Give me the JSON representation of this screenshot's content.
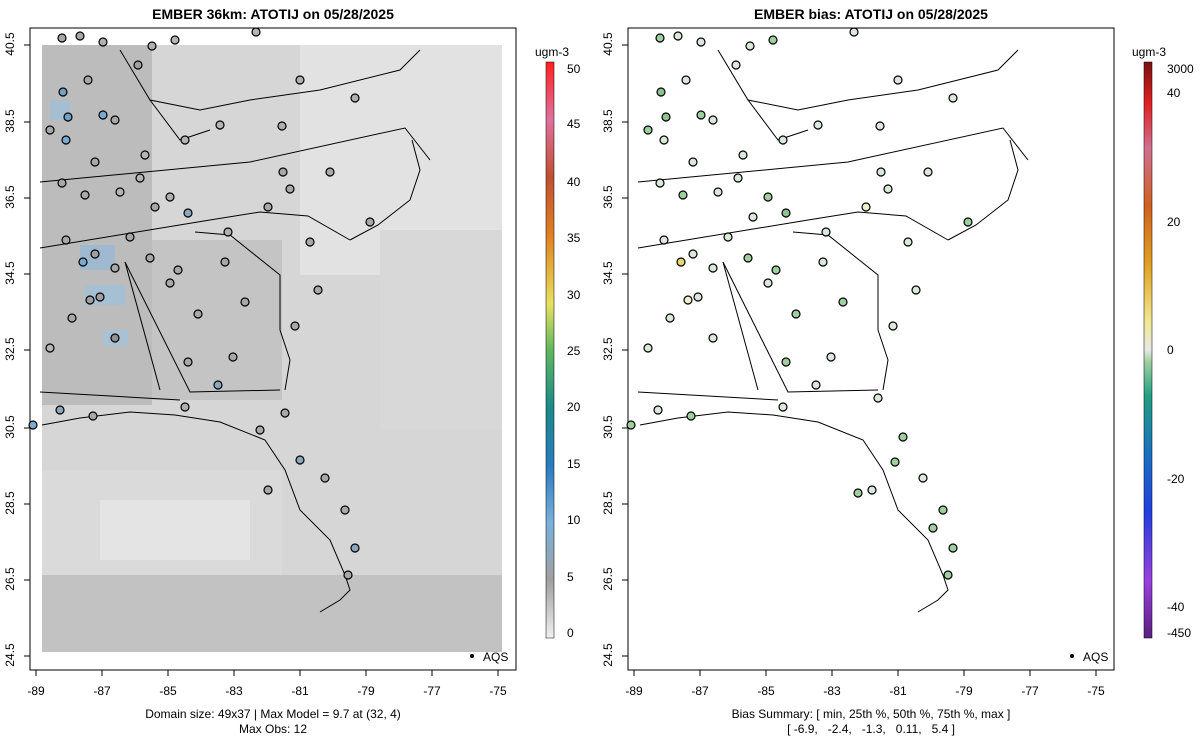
{
  "left_panel": {
    "title": "EMBER 36km: ATOTIJ on 05/28/2025",
    "footer_line1": "Domain size: 49x37 | Max Model = 9.7 at (32, 4)",
    "footer_line2": "Max Obs: 12",
    "legend_label": "AQS",
    "colorbar_unit": "ugm-3",
    "colorbar_ticks": [
      "50",
      "45",
      "40",
      "35",
      "30",
      "25",
      "20",
      "15",
      "10",
      "5",
      "0"
    ]
  },
  "right_panel": {
    "title": "EMBER bias: ATOTIJ on 05/28/2025",
    "footer_line1": "Bias Summary: [ min, 25th %, 50th %, 75th %, max ]",
    "footer_line2": "[ -6.9,   -2.4,   -1.3,   0.11,   5.4 ]",
    "legend_label": "AQS",
    "colorbar_unit": "ugm-3",
    "colorbar_ticks": [
      "3000",
      "40",
      "20",
      "0",
      "-20",
      "-40",
      "-450"
    ]
  },
  "x_ticks": [
    "-89",
    "-87",
    "-85",
    "-83",
    "-81",
    "-79",
    "-77",
    "-75"
  ],
  "y_ticks": [
    "40.5",
    "38.5",
    "36.5",
    "34.5",
    "32.5",
    "30.5",
    "28.5",
    "26.5",
    "24.5"
  ],
  "colors": {
    "grey_light": "#e3e3e3",
    "grey_mid": "#c8c8c8",
    "grey_dark": "#b0b0b0",
    "blue_light": "#9ab6cc",
    "site_grey": "#a8a8a8",
    "site_green": "#9fcf9f",
    "site_pale": "#dde8dd"
  }
}
